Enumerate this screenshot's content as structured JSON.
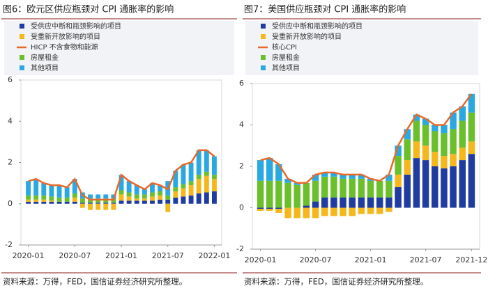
{
  "chart_data": [
    {
      "type": "bar",
      "title": "图6：欧元区供应瓶颈对 CPI 通胀率的影响",
      "source": "资料来源：万得，FED，国信证券经济研究所整理。",
      "categories": [
        "2020-01",
        null,
        null,
        null,
        null,
        null,
        "2020-07",
        null,
        null,
        null,
        null,
        null,
        "2021-01",
        null,
        null,
        null,
        null,
        null,
        "2021-07",
        null,
        null,
        null,
        null,
        null,
        "2022-01"
      ],
      "ylim": [
        -2,
        6
      ],
      "yticks": [
        -2,
        0,
        2,
        4,
        6
      ],
      "series": [
        {
          "name": "受供应中断和瓶颈影响的项目",
          "color": "#1f3c9e",
          "values": [
            0.1,
            0.1,
            0.1,
            0.1,
            0.1,
            0.1,
            0.1,
            0.05,
            0.05,
            0.05,
            0.05,
            0.05,
            0.15,
            0.15,
            0.15,
            0.15,
            0.15,
            0.2,
            0.2,
            0.3,
            0.35,
            0.4,
            0.5,
            0.55,
            0.6
          ]
        },
        {
          "name": "受重新开放影响的项目",
          "color": "#f5b81c",
          "values": [
            0.1,
            0.1,
            0.1,
            0.05,
            0,
            0,
            0.2,
            -0.2,
            -0.3,
            -0.3,
            -0.3,
            -0.3,
            0.3,
            0.2,
            0.1,
            0.1,
            0.2,
            0.2,
            -0.4,
            0.3,
            0.4,
            0.5,
            0.7,
            0.8,
            0.6
          ]
        },
        {
          "name": "HICP 不含食物和能源",
          "color": "#e8692b",
          "type": "line",
          "values": [
            1.1,
            1.2,
            1.0,
            0.9,
            0.9,
            0.8,
            1.2,
            0.4,
            0.2,
            0.2,
            0.2,
            0.2,
            1.4,
            1.1,
            0.9,
            0.7,
            1.0,
            0.9,
            0.7,
            1.6,
            1.9,
            2.0,
            2.6,
            2.6,
            2.3
          ]
        },
        {
          "name": "房屋租金",
          "color": "#6cbf2c",
          "values": [
            0.2,
            0.2,
            0.2,
            0.2,
            0.2,
            0.2,
            0.2,
            0.2,
            0.2,
            0.2,
            0.2,
            0.2,
            0.2,
            0.2,
            0.2,
            0.2,
            0.2,
            0.2,
            0.2,
            0.2,
            0.2,
            0.2,
            0.2,
            0.2,
            0.2
          ]
        },
        {
          "name": "其他项目",
          "color": "#2aa9e0",
          "values": [
            0.7,
            0.8,
            0.6,
            0.55,
            0.6,
            0.5,
            0.7,
            0.3,
            0.2,
            0.2,
            0.2,
            0.2,
            0.75,
            0.55,
            0.45,
            0.25,
            0.45,
            0.3,
            0.7,
            0.8,
            0.95,
            0.9,
            1.2,
            1.05,
            0.9
          ]
        }
      ]
    },
    {
      "type": "bar",
      "title": "图7：美国供应瓶颈对 CPI 通胀率的影响",
      "source": "资料来源：万得，FED，国信证券经济研究所整理。",
      "categories": [
        "2020-01",
        null,
        null,
        null,
        null,
        null,
        "2020-07",
        null,
        null,
        null,
        null,
        null,
        "2021-01",
        null,
        null,
        null,
        null,
        null,
        "2021-07",
        null,
        null,
        null,
        null,
        "2021-12"
      ],
      "ylim": [
        -2,
        6
      ],
      "yticks": [
        -2,
        0,
        2,
        4,
        6
      ],
      "series": [
        {
          "name": "受供应中断和瓶颈影响的项目",
          "color": "#1f3c9e",
          "values": [
            -0.05,
            -0.05,
            -0.05,
            0,
            0,
            0.1,
            0.3,
            0.5,
            0.5,
            0.5,
            0.5,
            0.5,
            0.5,
            0.5,
            0.5,
            1.0,
            1.6,
            2.4,
            2.3,
            2.0,
            1.9,
            2.0,
            2.3,
            2.6
          ]
        },
        {
          "name": "受重新开放影响的项目",
          "color": "#f5b81c",
          "values": [
            -0.1,
            -0.1,
            -0.2,
            -0.5,
            -0.5,
            -0.5,
            -0.5,
            -0.4,
            -0.4,
            -0.4,
            -0.4,
            -0.3,
            -0.3,
            -0.3,
            -0.2,
            0.6,
            0.7,
            0.8,
            0.7,
            0.7,
            0.6,
            0.6,
            0.6,
            0.6
          ]
        },
        {
          "name": "核心CPI",
          "color": "#e8692b",
          "type": "line",
          "values": [
            2.3,
            2.4,
            2.1,
            1.4,
            1.2,
            1.2,
            1.6,
            1.7,
            1.7,
            1.6,
            1.6,
            1.6,
            1.4,
            1.3,
            1.6,
            3.0,
            3.8,
            4.5,
            4.3,
            4.0,
            4.0,
            4.6,
            4.9,
            5.5
          ]
        },
        {
          "name": "房屋租金",
          "color": "#6cbf2c",
          "values": [
            1.3,
            1.3,
            1.3,
            1.2,
            1.1,
            1.1,
            1.0,
            1.0,
            1.0,
            0.9,
            0.9,
            0.9,
            0.8,
            0.8,
            0.8,
            0.9,
            1.0,
            1.0,
            1.0,
            1.0,
            1.1,
            1.2,
            1.3,
            1.4
          ]
        },
        {
          "name": "其他项目",
          "color": "#2aa9e0",
          "values": [
            1.0,
            1.1,
            0.8,
            0.2,
            0.1,
            0.0,
            0.3,
            0.2,
            0.2,
            0.2,
            0.2,
            0.2,
            0.1,
            0.0,
            0.3,
            0.5,
            0.5,
            0.3,
            0.3,
            0.3,
            0.4,
            0.8,
            0.7,
            0.9
          ]
        }
      ]
    }
  ]
}
